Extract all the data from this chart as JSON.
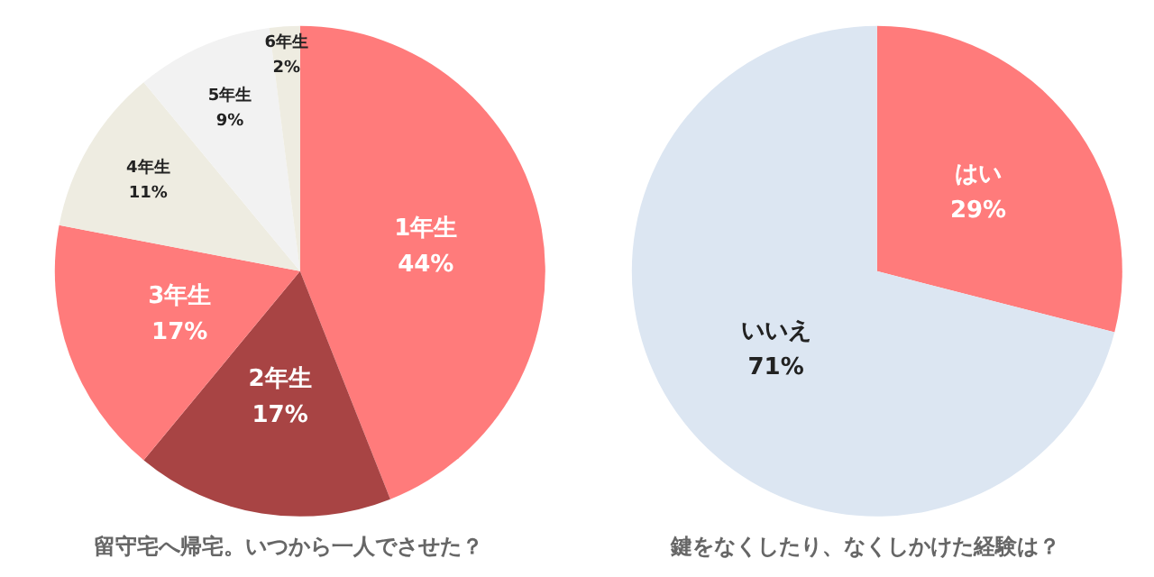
{
  "chart_data": [
    {
      "type": "pie",
      "title": "留守宅へ帰宅。いつから一人でさせた？",
      "categories": [
        "1年生",
        "2年生",
        "3年生",
        "4年生",
        "5年生",
        "6年生"
      ],
      "values": [
        44,
        17,
        17,
        11,
        9,
        2
      ],
      "colors": [
        "#ff7b7b",
        "#a84444",
        "#ff7b7b",
        "#eeece1",
        "#f2f2f2",
        "#eeece1"
      ],
      "value_labels": [
        "44%",
        "17%",
        "17%",
        "11%",
        "9%",
        "2%"
      ]
    },
    {
      "type": "pie",
      "title": "鍵をなくしたり、なくしかけた経験は？",
      "categories": [
        "はい",
        "いいえ"
      ],
      "values": [
        29,
        71
      ],
      "colors": [
        "#ff7b7b",
        "#dce6f2"
      ],
      "value_labels": [
        "29%",
        "71%"
      ]
    }
  ]
}
